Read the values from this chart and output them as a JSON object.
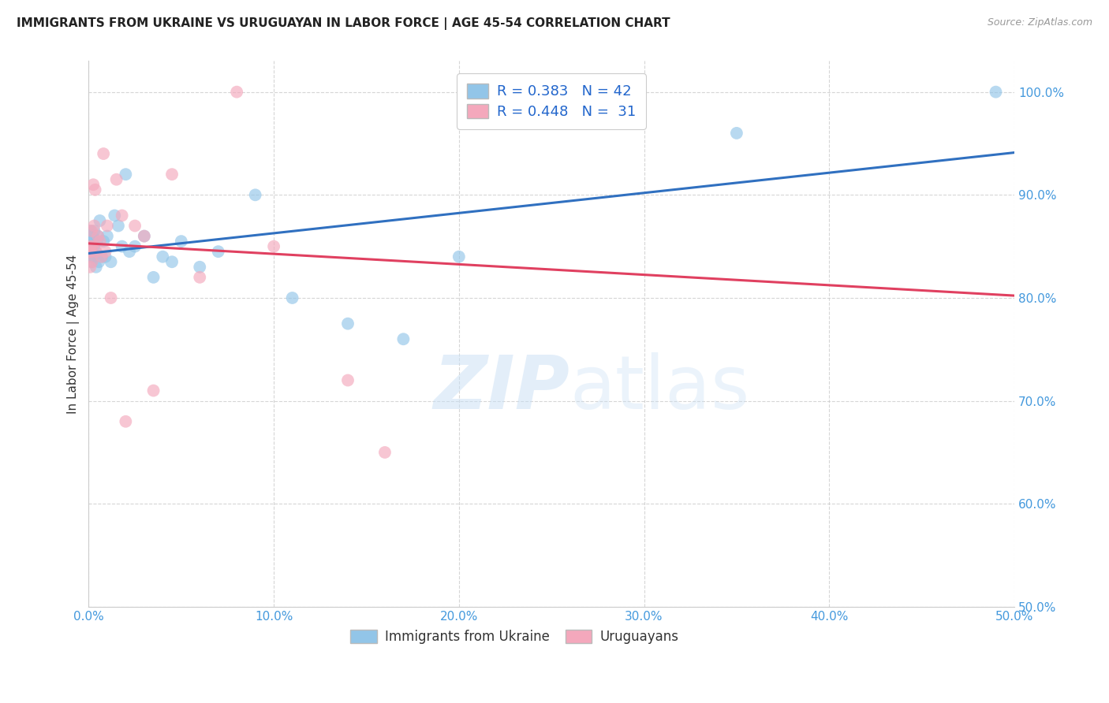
{
  "title": "IMMIGRANTS FROM UKRAINE VS URUGUAYAN IN LABOR FORCE | AGE 45-54 CORRELATION CHART",
  "source": "Source: ZipAtlas.com",
  "ylabel": "In Labor Force | Age 45-54",
  "xlim": [
    0.0,
    50.0
  ],
  "ylim": [
    50.0,
    103.0
  ],
  "xticks": [
    0.0,
    10.0,
    20.0,
    30.0,
    40.0,
    50.0
  ],
  "yticks": [
    50.0,
    60.0,
    70.0,
    80.0,
    90.0,
    100.0
  ],
  "xtick_labels": [
    "0.0%",
    "10.0%",
    "20.0%",
    "30.0%",
    "40.0%",
    "50.0%"
  ],
  "ytick_labels": [
    "50.0%",
    "60.0%",
    "70.0%",
    "80.0%",
    "90.0%",
    "100.0%"
  ],
  "ukraine_color": "#92C5E8",
  "uruguay_color": "#F4A8BC",
  "ukraine_R": 0.383,
  "ukraine_N": 42,
  "uruguay_R": 0.448,
  "uruguay_N": 31,
  "trendline_ukraine_color": "#3070C0",
  "trendline_uruguay_color": "#E04060",
  "ukraine_x": [
    0.05,
    0.08,
    0.1,
    0.12,
    0.15,
    0.18,
    0.2,
    0.22,
    0.25,
    0.28,
    0.3,
    0.35,
    0.4,
    0.45,
    0.5,
    0.55,
    0.6,
    0.7,
    0.8,
    0.9,
    1.0,
    1.2,
    1.4,
    1.6,
    1.8,
    2.0,
    2.2,
    2.5,
    3.0,
    3.5,
    4.0,
    4.5,
    5.0,
    6.0,
    7.0,
    9.0,
    11.0,
    14.0,
    17.0,
    20.0,
    35.0,
    49.0
  ],
  "ukraine_y": [
    85.5,
    84.0,
    86.5,
    85.0,
    83.5,
    84.5,
    86.0,
    85.5,
    84.0,
    85.0,
    86.5,
    84.5,
    83.0,
    85.5,
    86.0,
    83.5,
    87.5,
    84.0,
    85.5,
    84.0,
    86.0,
    83.5,
    88.0,
    87.0,
    85.0,
    92.0,
    84.5,
    85.0,
    86.0,
    82.0,
    84.0,
    83.5,
    85.5,
    83.0,
    84.5,
    90.0,
    80.0,
    77.5,
    76.0,
    84.0,
    96.0,
    100.0
  ],
  "uruguay_x": [
    0.05,
    0.08,
    0.1,
    0.12,
    0.15,
    0.18,
    0.2,
    0.25,
    0.3,
    0.35,
    0.4,
    0.5,
    0.6,
    0.7,
    0.8,
    0.9,
    1.0,
    1.2,
    1.5,
    1.8,
    2.0,
    2.5,
    3.0,
    3.5,
    4.5,
    6.0,
    8.0,
    10.0,
    14.0,
    16.0,
    22.0
  ],
  "uruguay_y": [
    84.5,
    83.0,
    85.0,
    84.5,
    86.5,
    83.5,
    85.0,
    91.0,
    87.0,
    90.5,
    84.5,
    86.0,
    85.5,
    84.0,
    94.0,
    84.5,
    87.0,
    80.0,
    91.5,
    88.0,
    68.0,
    87.0,
    86.0,
    71.0,
    92.0,
    82.0,
    100.0,
    85.0,
    72.0,
    65.0,
    100.0
  ],
  "watermark_zip": "ZIP",
  "watermark_atlas": "atlas",
  "background_color": "#FFFFFF",
  "grid_color": "#CCCCCC",
  "tick_color": "#4499DD",
  "legend_color_ukraine": "#92C5E8",
  "legend_color_uruguay": "#F4A8BC"
}
